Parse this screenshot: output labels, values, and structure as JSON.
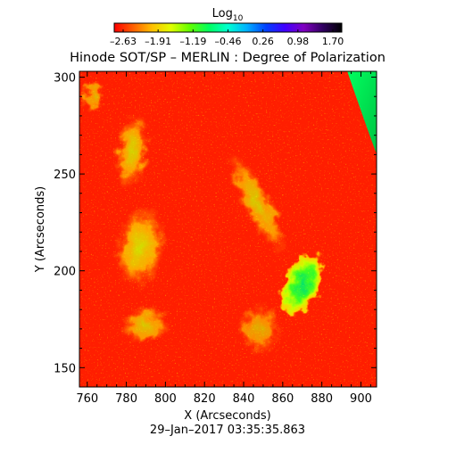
{
  "chart_data": {
    "type": "heatmap",
    "title": "Hinode SOT/SP – MERLIN : Degree of Polarization",
    "xlabel": "X (Arcseconds)",
    "ylabel": "Y (Arcseconds)",
    "footer": "29–Jan–2017 03:35:35.863",
    "xlim": [
      756,
      908
    ],
    "ylim": [
      140,
      303
    ],
    "x_ticks": [
      760,
      780,
      800,
      820,
      840,
      860,
      880,
      900
    ],
    "y_ticks": [
      150,
      200,
      250,
      300
    ],
    "colorbar": {
      "label_main": "Log",
      "label_sub": "10",
      "tick_labels": [
        "–2.63",
        "–1.91",
        "–1.19",
        "–0.46",
        "0.26",
        "0.98",
        "1.70"
      ],
      "colors": [
        "#ff0000",
        "#ff6000",
        "#ffc000",
        "#e0ff00",
        "#60ff00",
        "#00ff60",
        "#00ffd0",
        "#00b0ff",
        "#0040ff",
        "#4000ff",
        "#8000c0",
        "#300060",
        "#000000"
      ]
    },
    "background_color": "#ff1e00",
    "features": [
      {
        "name": "bright polarization patch",
        "x": 870,
        "y": 193,
        "rx": 10,
        "ry": 17,
        "rotation": 25,
        "level": 1.0
      },
      {
        "name": "plage left",
        "x": 787,
        "y": 212,
        "rx": 13,
        "ry": 22,
        "rotation": 8,
        "level": 0.55
      },
      {
        "name": "plage upper left",
        "x": 783,
        "y": 262,
        "rx": 9,
        "ry": 20,
        "rotation": 6,
        "level": 0.5
      },
      {
        "name": "plage lower left",
        "x": 790,
        "y": 172,
        "rx": 13,
        "ry": 10,
        "rotation": 0,
        "level": 0.45
      },
      {
        "name": "network center",
        "x": 847,
        "y": 235,
        "rx": 8,
        "ry": 30,
        "rotation": -28,
        "level": 0.45
      },
      {
        "name": "network center low",
        "x": 848,
        "y": 170,
        "rx": 11,
        "ry": 13,
        "rotation": 0,
        "level": 0.35
      },
      {
        "name": "top left strip",
        "x": 763,
        "y": 290,
        "rx": 6,
        "ry": 8,
        "rotation": 0,
        "level": 0.4
      }
    ],
    "limb": {
      "note": "off-limb region upper right",
      "colors": [
        "#00ff60",
        "#00c000"
      ]
    }
  }
}
